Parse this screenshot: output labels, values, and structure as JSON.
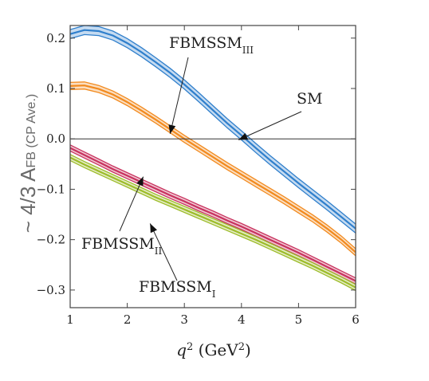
{
  "chart_data": {
    "type": "line",
    "xlabel": {
      "var": "q",
      "sup": "2",
      "units_open": " (GeV",
      "units_sup": "2",
      "units_close": ")"
    },
    "ylabel": {
      "prefix": "~ 4/3 A",
      "sub": "FB",
      "suffix": " (CP Ave.)"
    },
    "xlim": [
      1,
      6
    ],
    "ylim": [
      -0.335,
      0.225
    ],
    "xticks": [
      1,
      2,
      3,
      4,
      5,
      6
    ],
    "yticks": [
      -0.3,
      -0.2,
      -0.1,
      0.0,
      0.1,
      0.2
    ],
    "ytick_labels": [
      "−0.3",
      "−0.2",
      "−0.1",
      "0.0",
      "0.1",
      "0.2"
    ],
    "reference_line_y": 0.0,
    "series": [
      {
        "name": "SM",
        "color": "#2f7fcc",
        "x": [
          1.0,
          1.25,
          1.5,
          1.75,
          2.0,
          2.25,
          2.5,
          2.75,
          3.0,
          3.25,
          3.5,
          3.75,
          4.0,
          4.25,
          4.5,
          4.75,
          5.0,
          5.25,
          5.5,
          5.75,
          6.0
        ],
        "y": [
          0.208,
          0.216,
          0.214,
          0.205,
          0.19,
          0.172,
          0.152,
          0.131,
          0.108,
          0.083,
          0.057,
          0.031,
          0.007,
          -0.018,
          -0.042,
          -0.065,
          -0.088,
          -0.11,
          -0.132,
          -0.155,
          -0.178
        ],
        "band": 0.009
      },
      {
        "name": "FBMSSM",
        "name_sub": "III",
        "color": "#f28a1e",
        "x": [
          1.0,
          1.25,
          1.5,
          1.75,
          2.0,
          2.25,
          2.5,
          2.75,
          3.0,
          3.25,
          3.5,
          3.75,
          4.0,
          4.25,
          4.5,
          4.75,
          5.0,
          5.25,
          5.5,
          5.75,
          6.0
        ],
        "y": [
          0.105,
          0.106,
          0.099,
          0.088,
          0.073,
          0.056,
          0.038,
          0.019,
          0.0,
          -0.018,
          -0.036,
          -0.054,
          -0.071,
          -0.088,
          -0.105,
          -0.122,
          -0.14,
          -0.158,
          -0.178,
          -0.2,
          -0.225
        ],
        "band": 0.007
      },
      {
        "name": "FBMSSM",
        "name_sub": "II",
        "color": "#c8325e",
        "x": [
          1.0,
          1.25,
          1.5,
          1.75,
          2.0,
          2.25,
          2.5,
          2.75,
          3.0,
          3.25,
          3.5,
          3.75,
          4.0,
          4.25,
          4.5,
          4.75,
          5.0,
          5.25,
          5.5,
          5.75,
          6.0
        ],
        "y": [
          -0.018,
          -0.032,
          -0.046,
          -0.06,
          -0.073,
          -0.086,
          -0.099,
          -0.112,
          -0.124,
          -0.137,
          -0.149,
          -0.162,
          -0.174,
          -0.187,
          -0.2,
          -0.213,
          -0.226,
          -0.24,
          -0.254,
          -0.268,
          -0.282
        ],
        "band": 0.006
      },
      {
        "name": "FBMSSM",
        "name_sub": "I",
        "color": "#9dbc2a",
        "x": [
          1.0,
          1.25,
          1.5,
          1.75,
          2.0,
          2.25,
          2.5,
          2.75,
          3.0,
          3.25,
          3.5,
          3.75,
          4.0,
          4.25,
          4.5,
          4.75,
          5.0,
          5.25,
          5.5,
          5.75,
          6.0
        ],
        "y": [
          -0.037,
          -0.051,
          -0.064,
          -0.077,
          -0.09,
          -0.103,
          -0.116,
          -0.128,
          -0.14,
          -0.152,
          -0.164,
          -0.176,
          -0.188,
          -0.2,
          -0.213,
          -0.226,
          -0.239,
          -0.252,
          -0.266,
          -0.28,
          -0.295
        ],
        "band": 0.006
      }
    ],
    "annotations": [
      {
        "label": "FBMSSM",
        "sub": "III",
        "arrow_to": [
          2.75,
          0.01
        ]
      },
      {
        "label": "SM",
        "sub": "",
        "arrow_to": [
          3.95,
          -0.002
        ]
      },
      {
        "label": "FBMSSM",
        "sub": "II",
        "arrow_to": [
          2.28,
          -0.075
        ]
      },
      {
        "label": "FBMSSM",
        "sub": "I",
        "arrow_to": [
          2.4,
          -0.168
        ]
      }
    ]
  }
}
